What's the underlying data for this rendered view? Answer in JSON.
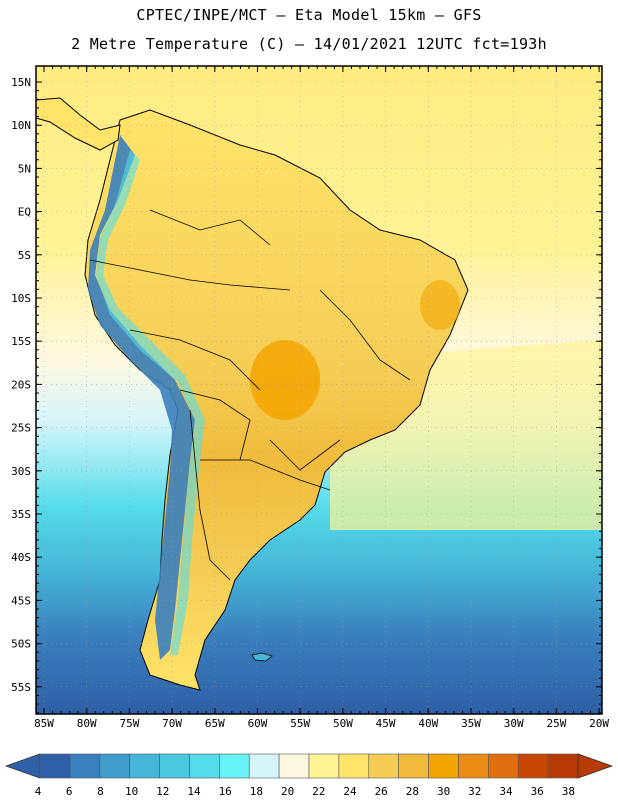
{
  "header": {
    "line1": "CPTEC/INPE/MCT –  Eta Model 15km – GFS",
    "line2": "2 Metre Temperature (C) – 14/01/2021 12UTC fct=193h"
  },
  "map": {
    "lat_labels": [
      "15N",
      "10N",
      "5N",
      "EQ",
      "5S",
      "10S",
      "15S",
      "20S",
      "25S",
      "30S",
      "35S",
      "40S",
      "45S",
      "50S",
      "55S"
    ],
    "lon_labels": [
      "85W",
      "80W",
      "75W",
      "70W",
      "65W",
      "60W",
      "55W",
      "50W",
      "45W",
      "40W",
      "35W",
      "30W",
      "25W",
      "20W"
    ]
  },
  "colorbar": {
    "labels": [
      "4",
      "6",
      "8",
      "10",
      "12",
      "14",
      "16",
      "18",
      "20",
      "22",
      "24",
      "26",
      "28",
      "30",
      "32",
      "34",
      "36",
      "38"
    ],
    "colors": [
      "#2f5fa6",
      "#3a7fbe",
      "#3f9ccc",
      "#45b5d8",
      "#4cc9e1",
      "#55dcea",
      "#67f2f5",
      "#d5f5fb",
      "#fff8e0",
      "#fff396",
      "#ffe46a",
      "#f5cd55",
      "#f0bb3c",
      "#f3a400",
      "#ec8a16",
      "#df6f0d",
      "#c84705",
      "#b83a04"
    ],
    "land_colors": [
      "#ffe46a",
      "#f5cd55",
      "#f0bb3c"
    ],
    "sea_north": "#ffec82"
  }
}
